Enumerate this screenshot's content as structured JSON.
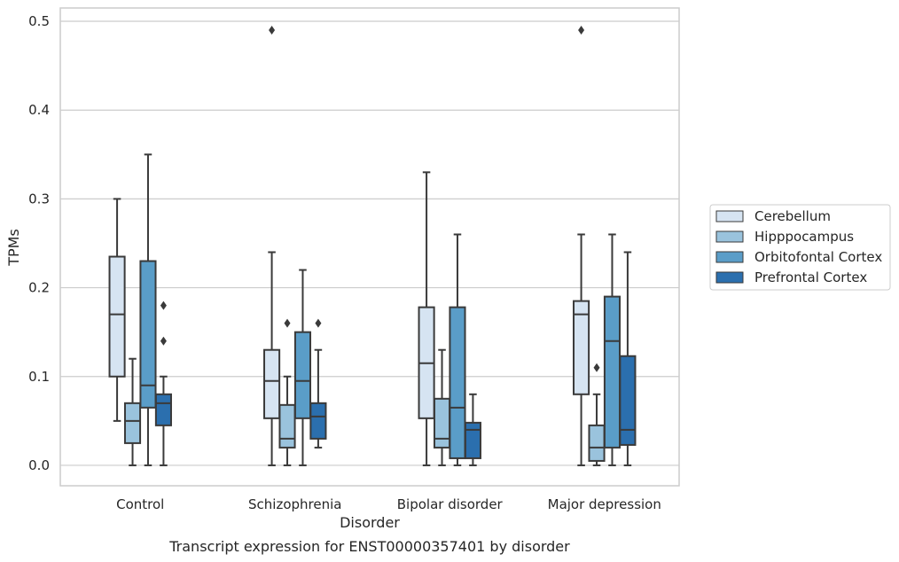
{
  "chart_data": {
    "type": "boxplot",
    "title": "",
    "caption": "Transcript expression for ENST00000357401 by disorder",
    "xlabel": "Disorder",
    "ylabel": "TPMs",
    "ylim": [
      -0.023,
      0.515
    ],
    "yticks": [
      "0.0",
      "0.1",
      "0.2",
      "0.3",
      "0.4",
      "0.5"
    ],
    "ytick_values": [
      0,
      0.1,
      0.2,
      0.3,
      0.4,
      0.5
    ],
    "grid": "horizontal",
    "legend_position": "right",
    "categories": [
      "Control",
      "Schizophrenia",
      "Bipolar disorder",
      "Major depression"
    ],
    "series": [
      {
        "name": "Cerebellum",
        "color": "#d6e4f2",
        "boxes": [
          {
            "whisker_low": 0.05,
            "q1": 0.1,
            "median": 0.17,
            "q3": 0.235,
            "whisker_high": 0.3,
            "outliers": []
          },
          {
            "whisker_low": 0.0,
            "q1": 0.053,
            "median": 0.095,
            "q3": 0.13,
            "whisker_high": 0.24,
            "outliers": [
              0.49
            ]
          },
          {
            "whisker_low": 0.0,
            "q1": 0.053,
            "median": 0.115,
            "q3": 0.178,
            "whisker_high": 0.33,
            "outliers": []
          },
          {
            "whisker_low": 0.0,
            "q1": 0.08,
            "median": 0.17,
            "q3": 0.185,
            "whisker_high": 0.26,
            "outliers": [
              0.49
            ]
          }
        ]
      },
      {
        "name": "Hipppocampus",
        "color": "#9ac3dd",
        "boxes": [
          {
            "whisker_low": 0.0,
            "q1": 0.025,
            "median": 0.05,
            "q3": 0.07,
            "whisker_high": 0.12,
            "outliers": []
          },
          {
            "whisker_low": 0.0,
            "q1": 0.02,
            "median": 0.03,
            "q3": 0.068,
            "whisker_high": 0.1,
            "outliers": [
              0.16
            ]
          },
          {
            "whisker_low": 0.0,
            "q1": 0.02,
            "median": 0.03,
            "q3": 0.075,
            "whisker_high": 0.13,
            "outliers": []
          },
          {
            "whisker_low": 0.0,
            "q1": 0.005,
            "median": 0.02,
            "q3": 0.045,
            "whisker_high": 0.08,
            "outliers": [
              0.11
            ]
          }
        ]
      },
      {
        "name": "Orbitofontal Cortex",
        "color": "#5a9dc8",
        "boxes": [
          {
            "whisker_low": 0.0,
            "q1": 0.065,
            "median": 0.09,
            "q3": 0.23,
            "whisker_high": 0.35,
            "outliers": []
          },
          {
            "whisker_low": 0.0,
            "q1": 0.053,
            "median": 0.095,
            "q3": 0.15,
            "whisker_high": 0.22,
            "outliers": []
          },
          {
            "whisker_low": 0.0,
            "q1": 0.008,
            "median": 0.065,
            "q3": 0.178,
            "whisker_high": 0.26,
            "outliers": []
          },
          {
            "whisker_low": 0.0,
            "q1": 0.02,
            "median": 0.14,
            "q3": 0.19,
            "whisker_high": 0.26,
            "outliers": []
          }
        ]
      },
      {
        "name": "Prefrontal Cortex",
        "color": "#2b6fae",
        "boxes": [
          {
            "whisker_low": 0.0,
            "q1": 0.045,
            "median": 0.07,
            "q3": 0.08,
            "whisker_high": 0.1,
            "outliers": [
              0.18,
              0.14
            ]
          },
          {
            "whisker_low": 0.02,
            "q1": 0.03,
            "median": 0.055,
            "q3": 0.07,
            "whisker_high": 0.13,
            "outliers": [
              0.16
            ]
          },
          {
            "whisker_low": 0.0,
            "q1": 0.008,
            "median": 0.04,
            "q3": 0.048,
            "whisker_high": 0.08,
            "outliers": []
          },
          {
            "whisker_low": 0.0,
            "q1": 0.023,
            "median": 0.04,
            "q3": 0.123,
            "whisker_high": 0.24,
            "outliers": []
          }
        ]
      }
    ]
  }
}
